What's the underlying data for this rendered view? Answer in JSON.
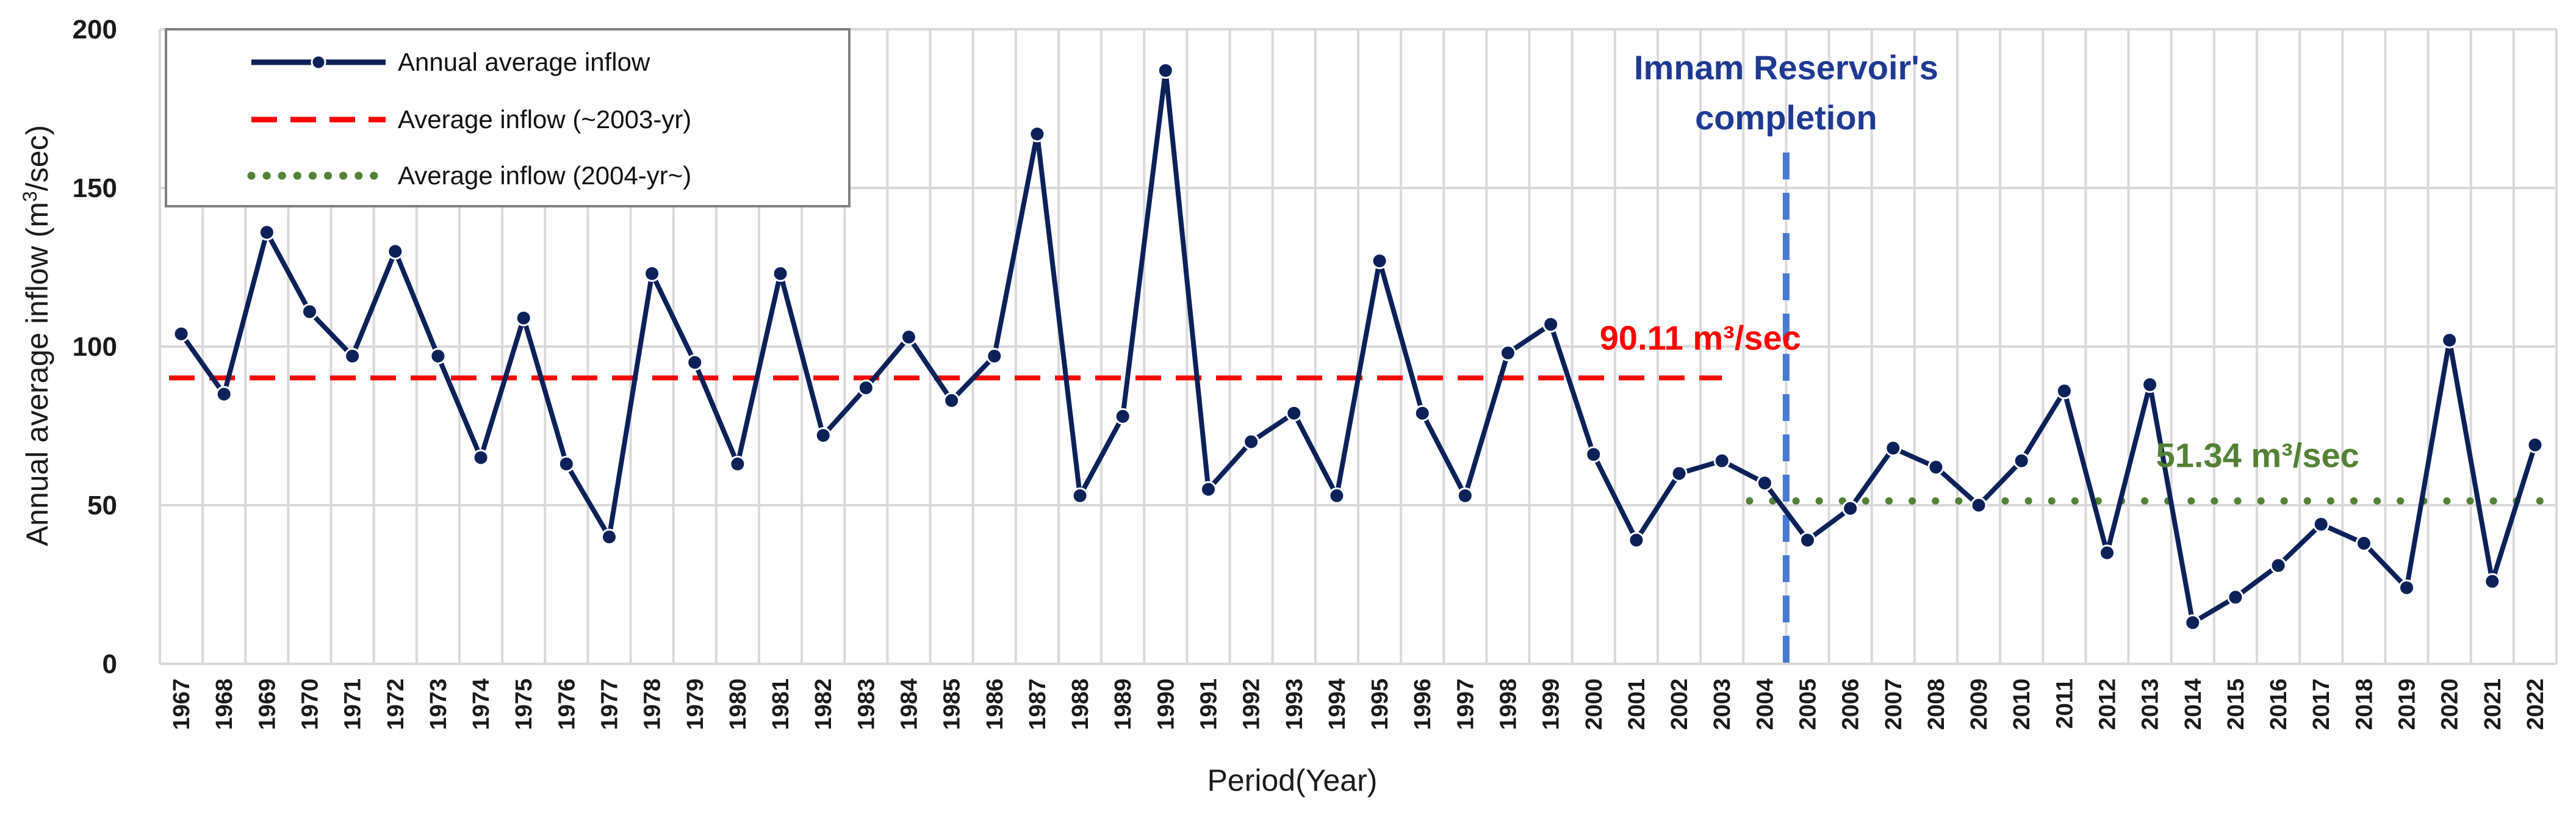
{
  "chart_data": {
    "type": "line",
    "title": "",
    "xlabel": "Period(Year)",
    "ylabel_main": "Annual average inflow (m",
    "ylabel_sup": "3",
    "ylabel_end": "/sec)",
    "ylim": [
      0,
      200
    ],
    "yticks": [
      0,
      50,
      100,
      150,
      200
    ],
    "grid": true,
    "legend_position": "top-left",
    "x": [
      1967,
      1968,
      1969,
      1970,
      1971,
      1972,
      1973,
      1974,
      1975,
      1976,
      1977,
      1978,
      1979,
      1980,
      1981,
      1982,
      1983,
      1984,
      1985,
      1986,
      1987,
      1988,
      1989,
      1990,
      1991,
      1992,
      1993,
      1994,
      1995,
      1996,
      1997,
      1998,
      1999,
      2000,
      2001,
      2002,
      2003,
      2004,
      2005,
      2006,
      2007,
      2008,
      2009,
      2010,
      2011,
      2012,
      2013,
      2014,
      2015,
      2016,
      2017,
      2018,
      2019,
      2020,
      2021,
      2022
    ],
    "series": [
      {
        "name": "Annual average inflow",
        "color": "#0d2159",
        "style": "line-marker",
        "values": [
          104,
          85,
          136,
          111,
          97,
          130,
          97,
          65,
          109,
          63,
          40,
          123,
          95,
          63,
          123,
          72,
          87,
          103,
          83,
          97,
          167,
          53,
          78,
          187,
          55,
          70,
          79,
          53,
          127,
          79,
          53,
          98,
          107,
          66,
          39,
          60,
          64,
          57,
          39,
          49,
          68,
          62,
          50,
          64,
          86,
          35,
          88,
          13,
          21,
          31,
          44,
          38,
          24,
          102,
          26,
          69
        ]
      },
      {
        "name": "Average inflow (~2003-yr)",
        "color": "#ff0000",
        "style": "dashed",
        "value": 90.11,
        "from": 1967,
        "to": 2003
      },
      {
        "name": "Average inflow (2004-yr~)",
        "color": "#548235",
        "style": "dotted",
        "value": 51.34,
        "from": 2004,
        "to": 2022
      }
    ],
    "annotations": [
      {
        "id": "pre",
        "text": "90.11 m³/sec",
        "color": "#ff0000",
        "x": 2000,
        "y": 99
      },
      {
        "id": "post",
        "text": "51.34 m³/sec",
        "color": "#548235",
        "x": 2013,
        "y": 62
      },
      {
        "id": "imnam",
        "line1": "Imnam Reservoir's",
        "line2": "completion",
        "color": "#1f3a93",
        "vline_color": "#4a7bd4",
        "x": 2004.5
      }
    ],
    "legend_labels": {
      "annual": "Annual average inflow",
      "pre": "Average inflow (~2003-yr)",
      "post": "Average inflow (2004-yr~)"
    }
  }
}
